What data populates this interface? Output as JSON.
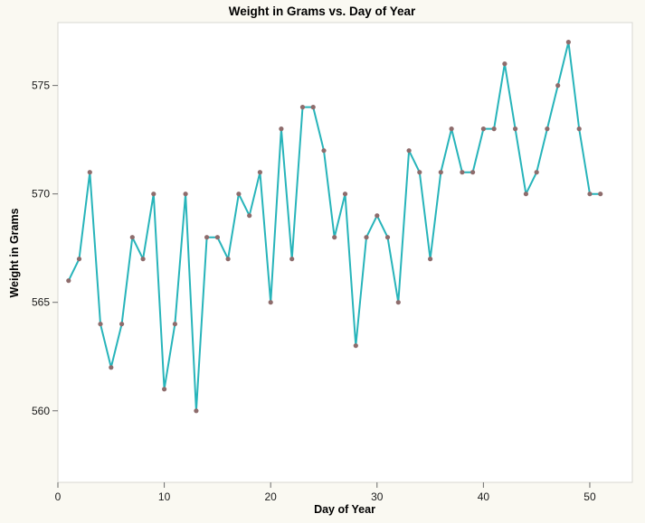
{
  "chart_data": {
    "type": "line",
    "title": "Weight in Grams vs. Day of Year",
    "xlabel": "Day of Year",
    "ylabel": "Weight in Grams",
    "x": [
      1,
      2,
      3,
      4,
      5,
      6,
      7,
      8,
      9,
      10,
      11,
      12,
      13,
      14,
      15,
      16,
      17,
      18,
      19,
      20,
      21,
      22,
      23,
      24,
      25,
      26,
      27,
      28,
      29,
      30,
      31,
      32,
      33,
      34,
      35,
      36,
      37,
      38,
      39,
      40,
      41,
      42,
      43,
      44,
      45,
      46,
      47,
      48,
      49,
      50,
      51
    ],
    "values": [
      566,
      567,
      571,
      564,
      562,
      564,
      568,
      567,
      570,
      561,
      564,
      570,
      560,
      568,
      568,
      567,
      570,
      569,
      571,
      565,
      573,
      567,
      574,
      574,
      572,
      568,
      570,
      563,
      568,
      569,
      568,
      565,
      572,
      571,
      567,
      571,
      573,
      571,
      571,
      573,
      573,
      576,
      573,
      570,
      571,
      573,
      575,
      577,
      573,
      570,
      570
    ],
    "xlim": [
      0,
      54
    ],
    "ylim": [
      556.7,
      577.9
    ],
    "xticks": [
      0,
      10,
      20,
      30,
      40,
      50
    ],
    "yticks": [
      560,
      565,
      570,
      575
    ],
    "grid": false,
    "legend_position": "none",
    "line_color": "#27b4ba",
    "marker_color": "#8e6c6c",
    "background_color": "#faf9f2",
    "plot_background": "#ffffff",
    "border_color": "#d8d8d2",
    "tick_color": "#6b6b6b"
  }
}
